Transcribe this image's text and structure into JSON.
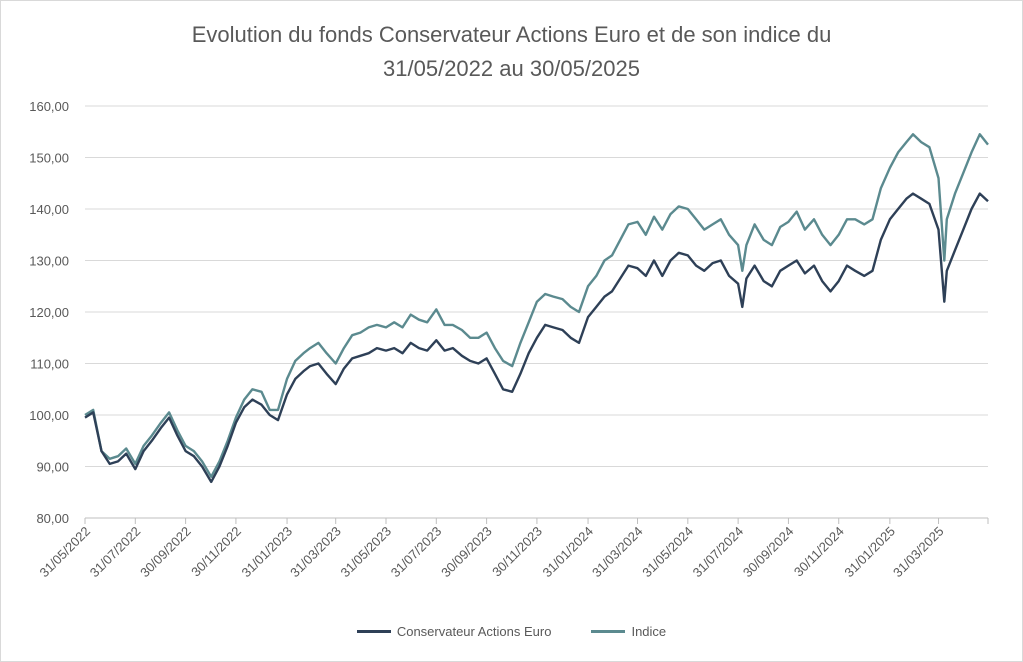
{
  "chart_data": {
    "type": "line",
    "title": "Evolution du fonds Conservateur Actions Euro et de son indice du\n31/05/2022 au 30/05/2025",
    "xlabel": "",
    "ylabel": "",
    "ylim": [
      80,
      160
    ],
    "yticks": [
      "80,00",
      "90,00",
      "100,00",
      "110,00",
      "120,00",
      "130,00",
      "140,00",
      "150,00",
      "160,00"
    ],
    "xticks": [
      "31/05/2022",
      "31/07/2022",
      "30/09/2022",
      "30/11/2022",
      "31/01/2023",
      "31/03/2023",
      "31/05/2023",
      "31/07/2023",
      "30/09/2023",
      "30/11/2023",
      "31/01/2024",
      "31/03/2024",
      "31/05/2024",
      "31/07/2024",
      "30/09/2024",
      "30/11/2024",
      "31/01/2025",
      "31/03/2025"
    ],
    "grid": "horizontal",
    "legend": "bottom",
    "x": [
      "2022-05-31",
      "2022-06-10",
      "2022-06-20",
      "2022-06-30",
      "2022-07-10",
      "2022-07-20",
      "2022-07-31",
      "2022-08-10",
      "2022-08-20",
      "2022-08-31",
      "2022-09-10",
      "2022-09-20",
      "2022-09-30",
      "2022-10-10",
      "2022-10-20",
      "2022-10-31",
      "2022-11-10",
      "2022-11-20",
      "2022-11-30",
      "2022-12-10",
      "2022-12-20",
      "2022-12-31",
      "2023-01-10",
      "2023-01-20",
      "2023-01-31",
      "2023-02-10",
      "2023-02-20",
      "2023-02-28",
      "2023-03-10",
      "2023-03-20",
      "2023-03-31",
      "2023-04-10",
      "2023-04-20",
      "2023-04-30",
      "2023-05-10",
      "2023-05-20",
      "2023-05-31",
      "2023-06-10",
      "2023-06-20",
      "2023-06-30",
      "2023-07-10",
      "2023-07-20",
      "2023-07-31",
      "2023-08-10",
      "2023-08-20",
      "2023-08-31",
      "2023-09-10",
      "2023-09-20",
      "2023-09-30",
      "2023-10-10",
      "2023-10-20",
      "2023-10-31",
      "2023-11-10",
      "2023-11-20",
      "2023-11-30",
      "2023-12-10",
      "2023-12-20",
      "2023-12-31",
      "2024-01-10",
      "2024-01-20",
      "2024-01-31",
      "2024-02-10",
      "2024-02-20",
      "2024-02-29",
      "2024-03-10",
      "2024-03-20",
      "2024-03-31",
      "2024-04-10",
      "2024-04-20",
      "2024-04-30",
      "2024-05-10",
      "2024-05-20",
      "2024-05-31",
      "2024-06-10",
      "2024-06-20",
      "2024-06-30",
      "2024-07-10",
      "2024-07-20",
      "2024-07-31",
      "2024-08-05",
      "2024-08-10",
      "2024-08-20",
      "2024-08-31",
      "2024-09-10",
      "2024-09-20",
      "2024-09-30",
      "2024-10-10",
      "2024-10-20",
      "2024-10-31",
      "2024-11-10",
      "2024-11-20",
      "2024-11-30",
      "2024-12-10",
      "2024-12-20",
      "2024-12-31",
      "2025-01-10",
      "2025-01-20",
      "2025-01-31",
      "2025-02-10",
      "2025-02-20",
      "2025-02-28",
      "2025-03-10",
      "2025-03-20",
      "2025-03-31",
      "2025-04-07",
      "2025-04-10",
      "2025-04-20",
      "2025-04-30",
      "2025-05-10",
      "2025-05-20",
      "2025-05-30"
    ],
    "series": [
      {
        "name": "Conservateur Actions Euro",
        "color": "#2e4057",
        "values": [
          99.5,
          100.5,
          93,
          90.5,
          91,
          92.5,
          89.5,
          93,
          95,
          97.5,
          99.5,
          96,
          93,
          92,
          90,
          87,
          90,
          94,
          98.5,
          101.5,
          103,
          102,
          100,
          99,
          104,
          107,
          108.5,
          109.5,
          110,
          108,
          106,
          109,
          111,
          111.5,
          112,
          113,
          112.5,
          113,
          112,
          114,
          113,
          112.5,
          114.5,
          112.5,
          113,
          111.5,
          110.5,
          110,
          111,
          108,
          105,
          104.5,
          108,
          112,
          115,
          117.5,
          117,
          116.5,
          115,
          114,
          119,
          121,
          123,
          124,
          126.5,
          129,
          128.5,
          127,
          130,
          127,
          130,
          131.5,
          131,
          129,
          128,
          129.5,
          130,
          127,
          125.5,
          121,
          126.5,
          129,
          126,
          125,
          128,
          129,
          130,
          127.5,
          129,
          126,
          124,
          126,
          129,
          128,
          127,
          128,
          134,
          138,
          140,
          142,
          143,
          142,
          141,
          136,
          122,
          128,
          132,
          136,
          140,
          143,
          141.5
        ]
      },
      {
        "name": "Indice",
        "color": "#5b8a8f",
        "values": [
          100,
          101,
          93,
          91.5,
          92,
          93.5,
          90.5,
          94,
          96,
          98.5,
          100.5,
          97,
          94,
          93,
          91,
          88,
          91,
          95,
          99.5,
          103,
          105,
          104.5,
          101,
          101,
          107,
          110.5,
          112,
          113,
          114,
          112,
          110,
          113,
          115.5,
          116,
          117,
          117.5,
          117,
          118,
          117,
          119.5,
          118.5,
          118,
          120.5,
          117.5,
          117.5,
          116.5,
          115,
          115,
          116,
          113,
          110.5,
          109.5,
          114,
          118,
          122,
          123.5,
          123,
          122.5,
          121,
          120,
          125,
          127,
          130,
          131,
          134,
          137,
          137.5,
          135,
          138.5,
          136,
          139,
          140.5,
          140,
          138,
          136,
          137,
          138,
          135,
          133,
          128,
          133,
          137,
          134,
          133,
          136.5,
          137.5,
          139.5,
          136,
          138,
          135,
          133,
          135,
          138,
          138,
          137,
          138,
          144,
          148,
          151,
          153,
          154.5,
          153,
          152,
          146,
          130,
          138,
          143,
          147,
          151,
          154.5,
          152.5
        ]
      }
    ]
  }
}
